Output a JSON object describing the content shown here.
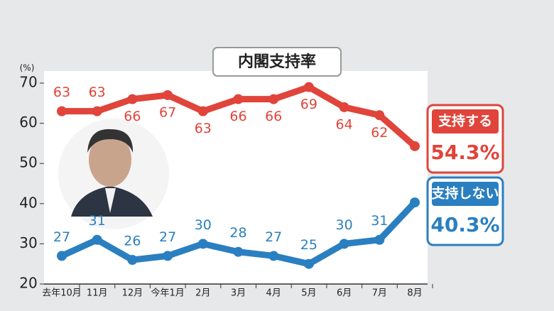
{
  "chart_data": {
    "type": "line",
    "title": "内閣支持率",
    "y_axis_label": "(%)",
    "categories": [
      "去年10月",
      "11月",
      "12月",
      "今年1月",
      "2月",
      "3月",
      "4月",
      "5月",
      "6月",
      "7月",
      "8月"
    ],
    "series": [
      {
        "name": "支持する",
        "color": "#e0443a",
        "values": [
          63,
          63,
          66,
          67,
          63,
          66,
          66,
          69,
          64,
          62,
          54.3
        ],
        "value_labels": [
          "63",
          "63",
          "66",
          "67",
          "63",
          "66",
          "66",
          "69",
          "64",
          "62",
          "54.3%"
        ]
      },
      {
        "name": "支持しない",
        "color": "#2a7fc0",
        "values": [
          27,
          31,
          26,
          27,
          30,
          28,
          27,
          25,
          30,
          31,
          40.3
        ],
        "value_labels": [
          "27",
          "31",
          "26",
          "27",
          "30",
          "28",
          "27",
          "25",
          "30",
          "31",
          "40.3%"
        ]
      }
    ],
    "ylim": [
      20,
      70
    ],
    "yticks": [
      20,
      30,
      40,
      50,
      60,
      70
    ],
    "grid": false
  }
}
